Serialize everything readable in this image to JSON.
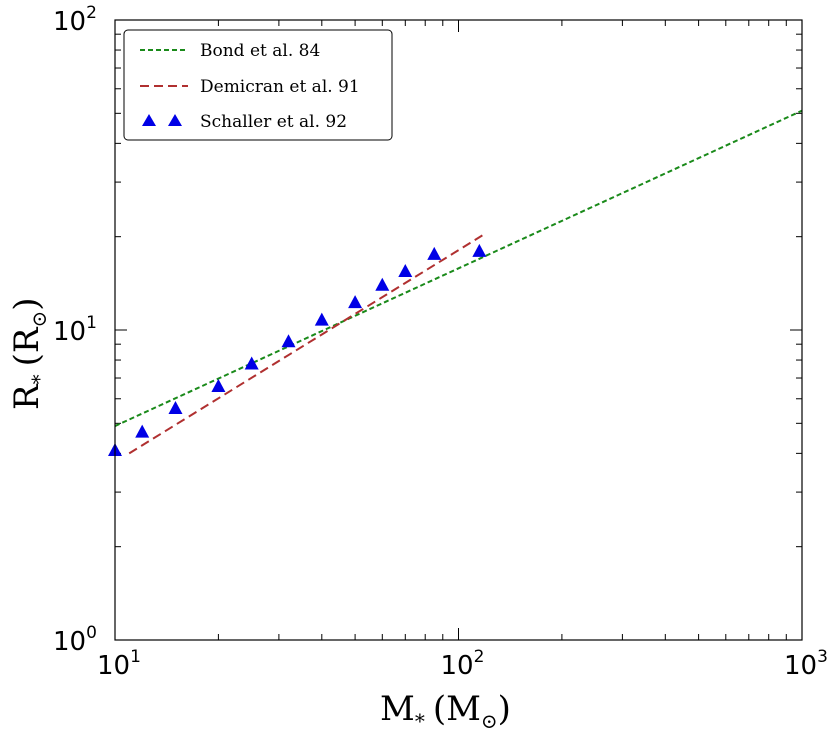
{
  "chart_data": {
    "type": "line",
    "xscale": "log",
    "yscale": "log",
    "xlim": [
      10,
      1000
    ],
    "ylim": [
      1,
      100
    ],
    "xlabel": "M",
    "xlabel_sub": "*",
    "xlabel_unit": "(M",
    "xlabel_unit_sub": "⊙",
    "xlabel_close": ")",
    "ylabel": "R",
    "ylabel_sub": "*",
    "ylabel_unit": "(R",
    "ylabel_unit_sub": "⊙",
    "ylabel_close": ")",
    "x_ticks": [
      {
        "value": 10,
        "base": "10",
        "exp": "1"
      },
      {
        "value": 100,
        "base": "10",
        "exp": "2"
      },
      {
        "value": 1000,
        "base": "10",
        "exp": "3"
      }
    ],
    "y_ticks": [
      {
        "value": 1,
        "base": "10",
        "exp": "0"
      },
      {
        "value": 10,
        "base": "10",
        "exp": "1"
      },
      {
        "value": 100,
        "base": "10",
        "exp": "2"
      }
    ],
    "series": [
      {
        "name": "Bond et al. 84",
        "style": "dashed-fine",
        "color": "#1a8a1a",
        "x": [
          10,
          1000
        ],
        "y": [
          4.9,
          51
        ]
      },
      {
        "name": "Demicran et al. 91",
        "style": "dashed",
        "color": "#b03030",
        "x": [
          11,
          120
        ],
        "y": [
          4.0,
          20.5
        ]
      },
      {
        "name": "Schaller et al. 92",
        "style": "triangle-markers",
        "color": "#0000e6",
        "x": [
          10,
          12,
          15,
          20,
          25,
          32,
          40,
          50,
          60,
          70,
          85,
          115
        ],
        "y": [
          4.1,
          4.7,
          5.6,
          6.6,
          7.8,
          9.2,
          10.8,
          12.3,
          14.0,
          15.5,
          17.6,
          18.0
        ]
      }
    ]
  }
}
